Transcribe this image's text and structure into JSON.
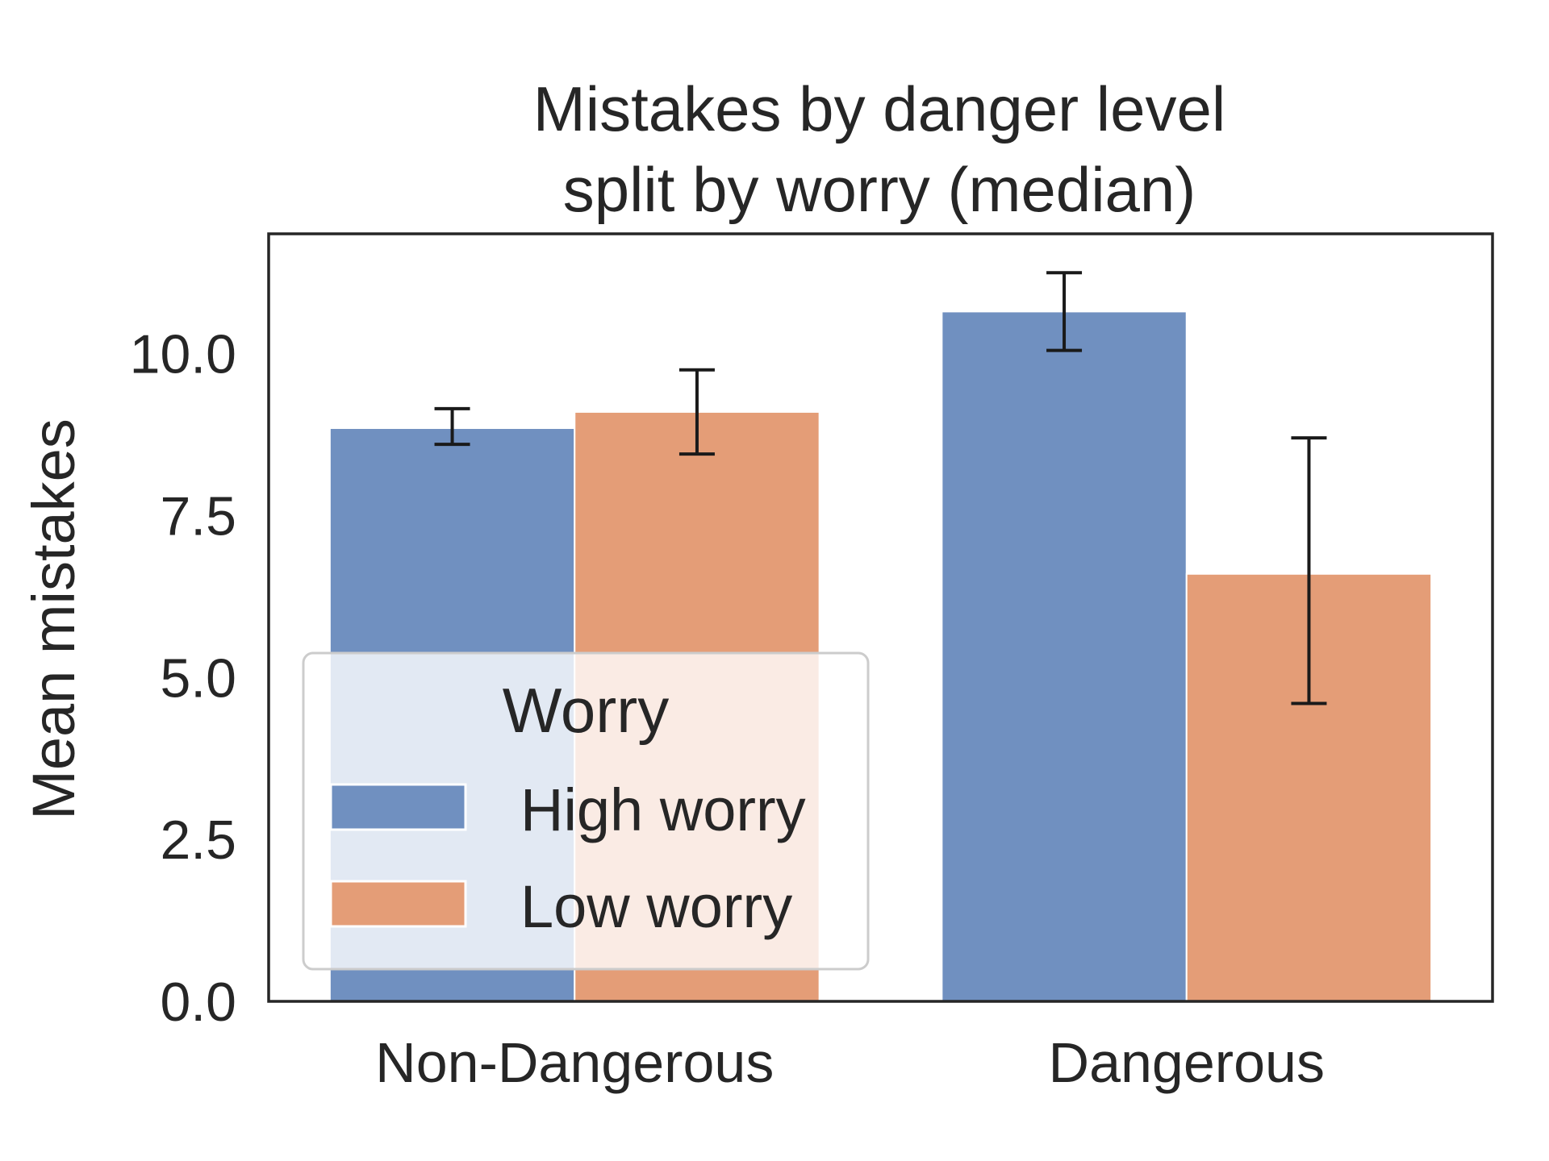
{
  "chart_data": {
    "type": "bar",
    "title": [
      "Mistakes by danger level",
      "split by worry (median)"
    ],
    "xlabel": "",
    "ylabel": "Mean mistakes",
    "categories": [
      "Non-Dangerous",
      "Dangerous"
    ],
    "ylim": [
      0,
      11.85
    ],
    "yticks": [
      "0.0",
      "2.5",
      "5.0",
      "7.5",
      "10.0"
    ],
    "ytick_values": [
      0,
      2.5,
      5,
      7.5,
      10
    ],
    "grid": false,
    "legend": {
      "title": "Worry",
      "placement": "lower-left",
      "entries": [
        "High worry",
        "Low worry"
      ]
    },
    "series": [
      {
        "name": "High worry",
        "color": "#7090c0",
        "values": [
          8.85,
          10.65
        ],
        "err_low": [
          8.6,
          10.05
        ],
        "err_high": [
          9.15,
          11.25
        ]
      },
      {
        "name": "Low worry",
        "color": "#e49d77",
        "values": [
          9.1,
          6.6
        ],
        "err_low": [
          8.45,
          4.6
        ],
        "err_high": [
          9.75,
          8.7
        ]
      }
    ]
  }
}
